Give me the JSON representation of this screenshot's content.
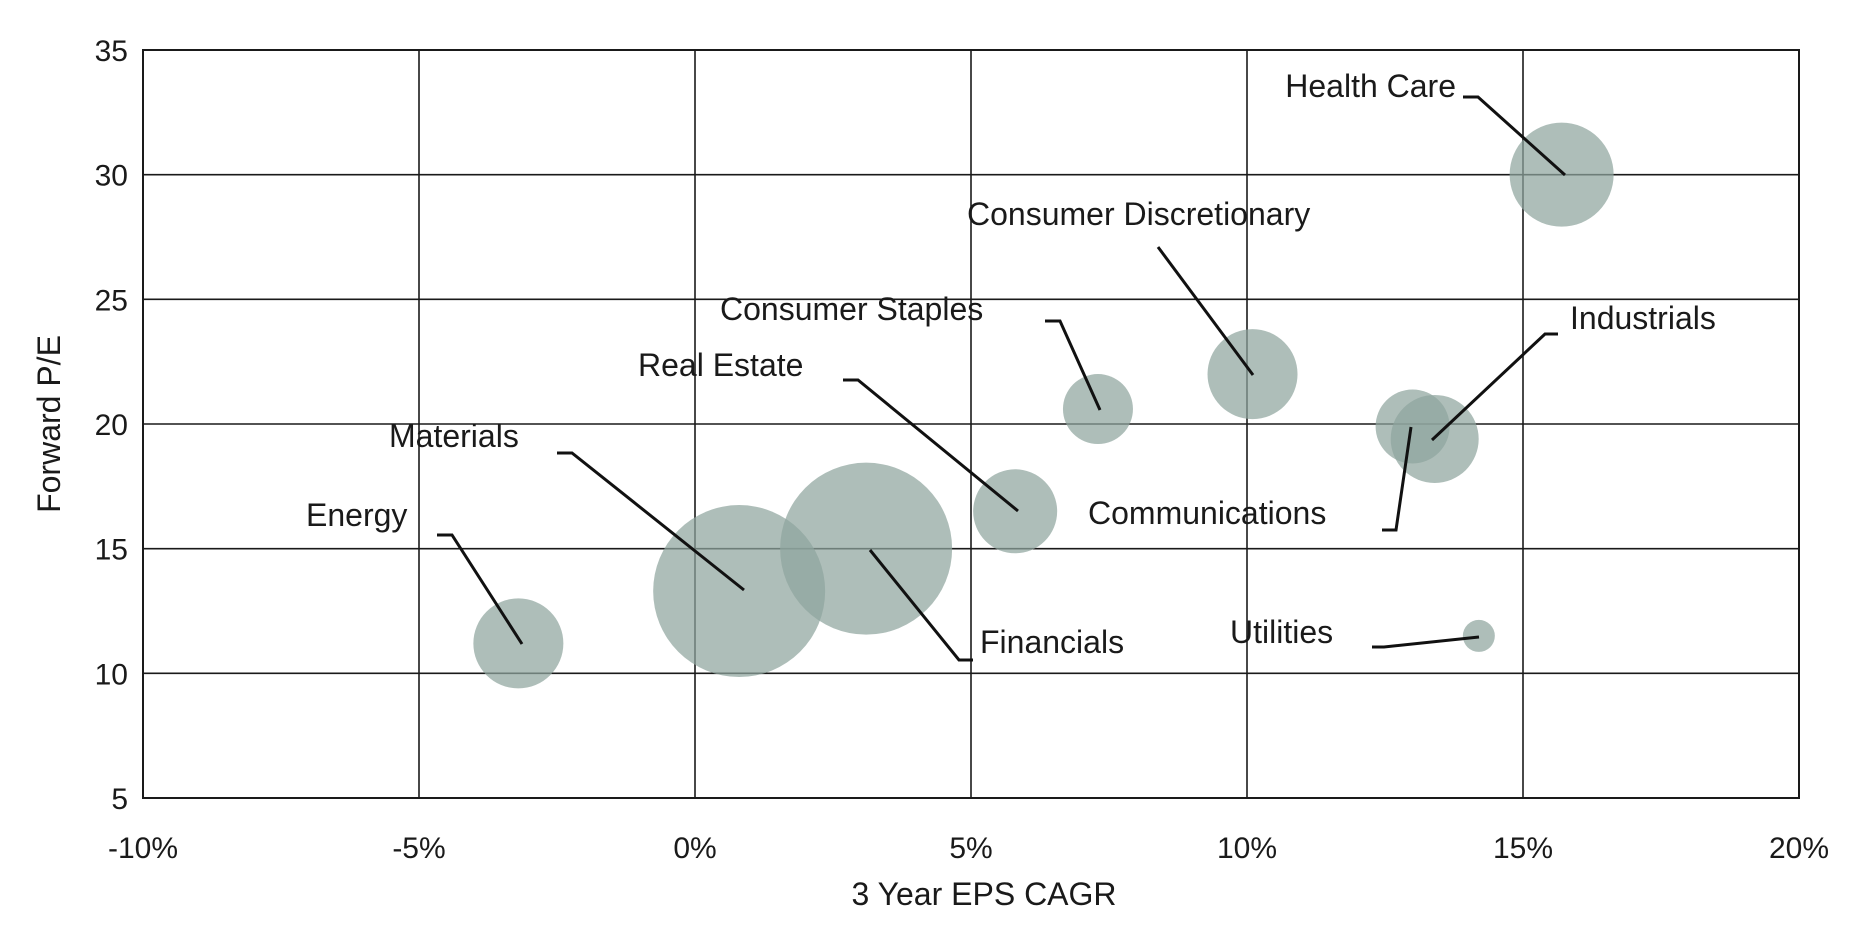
{
  "chart_data": {
    "type": "scatter",
    "subtype": "bubble",
    "xlabel": "3 Year EPS CAGR",
    "ylabel": "Forward P/E",
    "xlim": [
      -10,
      20
    ],
    "ylim": [
      5,
      35
    ],
    "x_ticks": [
      "-10%",
      "-5%",
      "0%",
      "5%",
      "10%",
      "15%",
      "20%"
    ],
    "y_ticks": [
      "5",
      "10",
      "15",
      "20",
      "25",
      "30",
      "35"
    ],
    "grid": true,
    "bubble_color": "#8fa59e",
    "points": [
      {
        "label": "Health Care",
        "x": 15.7,
        "y": 30.0,
        "size": 52
      },
      {
        "label": "Consumer Discretionary",
        "x": 10.1,
        "y": 22.0,
        "size": 45
      },
      {
        "label": "Consumer Staples",
        "x": 7.3,
        "y": 20.6,
        "size": 35
      },
      {
        "label": "Industrials",
        "x": 13.4,
        "y": 19.4,
        "size": 44
      },
      {
        "label": "Communications",
        "x": 13.0,
        "y": 19.9,
        "size": 37
      },
      {
        "label": "Real Estate",
        "x": 5.8,
        "y": 16.5,
        "size": 42
      },
      {
        "label": "Materials",
        "x": 0.8,
        "y": 13.3,
        "size": 86
      },
      {
        "label": "Financials",
        "x": 3.1,
        "y": 15.0,
        "size": 86
      },
      {
        "label": "Energy",
        "x": -3.2,
        "y": 11.2,
        "size": 45
      },
      {
        "label": "Utilities",
        "x": 14.2,
        "y": 11.5,
        "size": 16
      }
    ]
  }
}
